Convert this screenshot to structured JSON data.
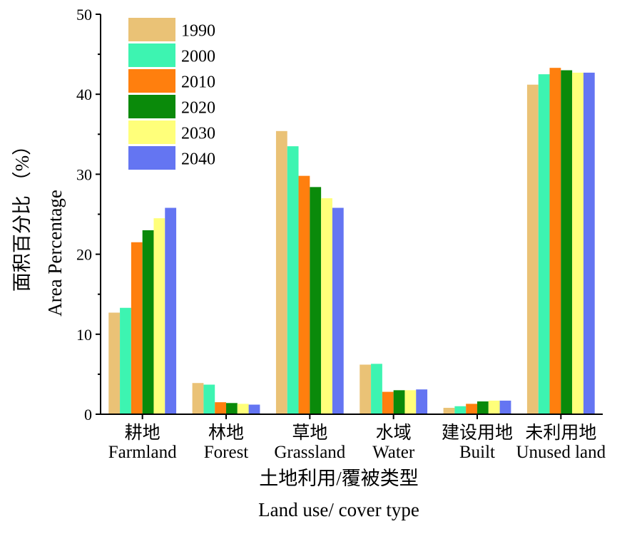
{
  "chart_data": {
    "type": "bar",
    "categories_cn": [
      "耕地",
      "林地",
      "草地",
      "水域",
      "建设用地",
      "未利用地"
    ],
    "categories": [
      "Farmland",
      "Forest",
      "Grassland",
      "Water",
      "Built",
      "Unused land"
    ],
    "series": [
      {
        "name": "1990",
        "color": "#EAC276",
        "values": [
          12.7,
          3.9,
          35.4,
          6.2,
          0.8,
          41.2
        ]
      },
      {
        "name": "2000",
        "color": "#3DF4B1",
        "values": [
          13.3,
          3.7,
          33.5,
          6.3,
          1.0,
          42.5
        ]
      },
      {
        "name": "2010",
        "color": "#FF7F0E",
        "values": [
          21.5,
          1.5,
          29.8,
          2.8,
          1.3,
          43.3
        ]
      },
      {
        "name": "2020",
        "color": "#0A8A0A",
        "values": [
          23.0,
          1.4,
          28.4,
          3.0,
          1.6,
          43.0
        ]
      },
      {
        "name": "2030",
        "color": "#FFFF7A",
        "values": [
          24.5,
          1.3,
          27.0,
          3.0,
          1.7,
          42.7
        ]
      },
      {
        "name": "2040",
        "color": "#6475F2",
        "values": [
          25.8,
          1.2,
          25.8,
          3.1,
          1.7,
          42.7
        ]
      }
    ],
    "ylim": [
      0,
      50
    ],
    "yticks": [
      0,
      10,
      20,
      30,
      40,
      50
    ],
    "ylabel_cn": "面积百分比 （%）",
    "ylabel": "Area Percentage",
    "xlabel_cn": "土地利用/覆被类型",
    "xlabel": "Land use/ cover type",
    "legend_position": "top-left",
    "grid": false
  }
}
